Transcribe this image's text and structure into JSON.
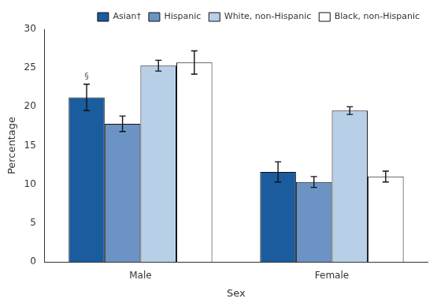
{
  "chart_data": {
    "type": "bar",
    "categories": [
      "Male",
      "Female"
    ],
    "series": [
      {
        "name": "Asian†",
        "color": "#1a5c9e",
        "values": [
          21.2,
          11.6
        ],
        "errors": [
          1.7,
          1.3
        ]
      },
      {
        "name": "Hispanic",
        "color": "#6b93c4",
        "values": [
          17.8,
          10.3
        ],
        "errors": [
          1.0,
          0.7
        ]
      },
      {
        "name": "White, non-Hispanic",
        "color": "#b8cfe8",
        "values": [
          25.3,
          19.5
        ],
        "errors": [
          0.7,
          0.5
        ]
      },
      {
        "name": "Black, non-Hispanic",
        "color": "#ffffff",
        "values": [
          25.7,
          11.0
        ],
        "errors": [
          1.5,
          0.7
        ]
      }
    ],
    "xlabel": "Sex",
    "ylabel": "Percentage",
    "ylim": [
      0,
      30
    ],
    "yticks": [
      0,
      5,
      10,
      15,
      20,
      25,
      30
    ],
    "grid": false,
    "legend": "upper right",
    "annotations": [
      {
        "text": "§",
        "series": "Asian†",
        "category": "Male"
      }
    ]
  }
}
